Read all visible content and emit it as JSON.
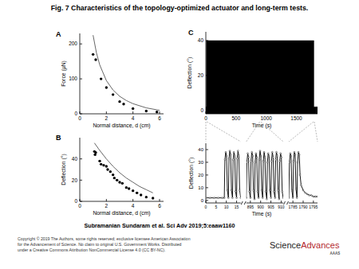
{
  "page": {
    "title": "Fig. 7 Characteristics of the topology-optimized actuator and long-term tests.",
    "citation": "Subramanian Sundaram et al. Sci Adv 2019;5:eaaw1160",
    "copyright": [
      "Copyright © 2019 The Authors, some rights reserved; exclusive licensee American Association",
      "for the Advancement of Science. No claim to original U.S. Government Works. Distributed",
      "under a Creative Commons Attribution NonCommercial License 4.0 (CC BY-NC)."
    ],
    "logo": [
      "Science",
      "Advances"
    ],
    "logo_sub": "AAAS"
  },
  "chart_data": [
    {
      "type": "scatter",
      "title": "A",
      "x_label": "Normal distance, d (cm)",
      "y_label": "Force (μN)",
      "xlim": [
        0,
        6.3
      ],
      "xticks": [
        0,
        2,
        4,
        6
      ],
      "ylim": [
        0,
        230
      ],
      "yticks": [
        0,
        100,
        200
      ],
      "color": "#000000",
      "series": [
        {
          "type": "scatter",
          "marker": "circle",
          "color": "#000000",
          "x": [
            1.0,
            1.2,
            1.6,
            2.0,
            2.5,
            3.0,
            3.3,
            4.0,
            5.0,
            5.8
          ],
          "values": [
            170,
            155,
            100,
            75,
            55,
            35,
            28,
            15,
            8,
            5
          ]
        },
        {
          "type": "line",
          "color": "#555555",
          "x": [
            1.0,
            1.25,
            1.5,
            2.0,
            2.5,
            3.0,
            3.5,
            4.0,
            5.0,
            6.0
          ],
          "values": [
            225,
            175,
            140,
            95,
            68,
            50,
            38,
            29,
            17,
            10
          ]
        }
      ]
    },
    {
      "type": "scatter",
      "title": "B",
      "x_label": "Normal distance, d (cm)",
      "y_label": "Deflection (°)",
      "xlim": [
        0,
        6.3
      ],
      "xticks": [
        0,
        2,
        4,
        6
      ],
      "ylim": [
        0,
        60
      ],
      "yticks": [
        0,
        20,
        40
      ],
      "color": "#000000",
      "series": [
        {
          "type": "scatter",
          "marker": "circle",
          "color": "#000000",
          "x": [
            1.1,
            1.15,
            1.2,
            1.5,
            1.6,
            1.8,
            2.0,
            2.1,
            2.3,
            2.5,
            2.6,
            2.8,
            3.0,
            3.2,
            3.5,
            3.7,
            4.0,
            4.3,
            4.6,
            5.0,
            5.5
          ],
          "values": [
            47,
            44,
            46,
            38,
            35,
            34,
            33,
            30,
            28,
            25,
            22,
            20,
            18,
            17,
            13,
            12,
            10,
            8,
            6,
            4,
            3
          ]
        },
        {
          "type": "line",
          "color": "#555555",
          "x": [
            1.1,
            1.5,
            2.0,
            2.5,
            3.0,
            3.5,
            4.0,
            4.5,
            5.0,
            5.5
          ],
          "values": [
            55,
            48,
            40,
            33,
            27,
            22,
            18,
            14,
            11,
            8
          ]
        }
      ]
    },
    {
      "type": "area",
      "title": "C",
      "x_label": "Time (s)",
      "y_label": "Deflection (°)",
      "xlim": [
        0,
        1850
      ],
      "xticks": [
        0,
        500,
        1000,
        1500
      ],
      "ylim": [
        -2,
        45
      ],
      "yticks": [
        0,
        20,
        40
      ],
      "color": "#000000",
      "series": [
        {
          "type": "area",
          "color": "#000000",
          "x": [
            0,
            8,
            8,
            1790,
            1790,
            1850
          ],
          "values": [
            2,
            2,
            40,
            40,
            2,
            2
          ]
        }
      ]
    },
    {
      "type": "line",
      "x_label": "Time (s)",
      "y_label": "Deflection (°)",
      "ylim": [
        -2,
        45
      ],
      "yticks": [
        0,
        10,
        20,
        30,
        40
      ],
      "color": "#000000",
      "marker": "circle",
      "segments": [
        {
          "xlim": [
            0,
            17
          ],
          "xticks": [
            0,
            5,
            10,
            15
          ],
          "x": [
            0,
            2,
            4,
            6,
            8,
            9,
            9.3,
            9.7,
            10.1,
            10.5,
            11,
            11.3,
            11.7,
            12.1,
            12.5,
            13,
            13.3,
            13.7,
            14.1,
            14.5,
            15,
            15.3,
            15.7,
            16.1,
            16.5,
            17
          ],
          "values": [
            2,
            2,
            2,
            2,
            2,
            2,
            32,
            38,
            35,
            8,
            2,
            33,
            39,
            36,
            8,
            2,
            32,
            38,
            35,
            7,
            2,
            33,
            39,
            35,
            8,
            2
          ]
        },
        {
          "xlim": [
            893,
            911
          ],
          "xticks": [
            895,
            900,
            905,
            910
          ],
          "x": [
            893,
            893.3,
            893.7,
            894.1,
            894.5,
            895,
            895.3,
            895.7,
            896.1,
            896.5,
            897,
            897.3,
            897.7,
            898.1,
            898.5,
            899,
            899.3,
            899.7,
            900.1,
            900.5,
            901,
            901.3,
            901.7,
            902.1,
            902.5,
            903,
            903.3,
            903.7,
            904.1,
            904.5,
            905,
            905.3,
            905.7,
            906.1,
            906.5,
            907,
            907.3,
            907.7,
            908.1,
            908.5,
            909,
            909.3,
            909.7,
            910.1,
            910.5,
            911
          ],
          "values": [
            2,
            30,
            37,
            34,
            7,
            2,
            31,
            38,
            35,
            8,
            1,
            30,
            37,
            34,
            7,
            2,
            32,
            39,
            35,
            8,
            2,
            31,
            38,
            34,
            7,
            1,
            30,
            37,
            35,
            8,
            2,
            31,
            38,
            34,
            7,
            2,
            32,
            38,
            35,
            8,
            1,
            31,
            37,
            34,
            7,
            2
          ]
        },
        {
          "xlim": [
            1783,
            1797
          ],
          "xticks": [
            1785,
            1790,
            1795
          ],
          "x": [
            1783,
            1783.3,
            1783.7,
            1784.1,
            1784.5,
            1785,
            1785.3,
            1785.7,
            1786.1,
            1786.5,
            1787,
            1787.3,
            1787.7,
            1788.1,
            1788.5,
            1789,
            1790,
            1791,
            1792,
            1793,
            1794,
            1795,
            1796,
            1797
          ],
          "values": [
            2,
            30,
            37,
            35,
            8,
            2,
            31,
            38,
            36,
            9,
            2,
            30,
            38,
            36,
            20,
            12,
            8,
            6,
            5,
            4,
            4,
            3,
            3,
            3
          ]
        }
      ]
    }
  ]
}
